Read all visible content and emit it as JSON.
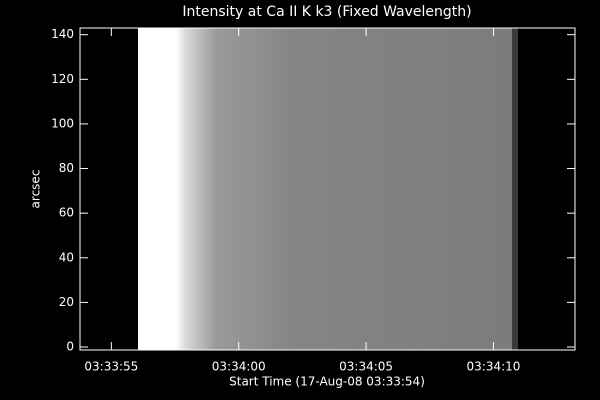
{
  "chart_data": {
    "type": "image",
    "title": "Intensity at Ca II K k3 (Fixed Wavelength)",
    "x_label": "Start Time (17-Aug-08 03:33:54)",
    "y_label": "arcsec",
    "xlim": [
      -0.23,
      19.2
    ],
    "xticks": [
      {
        "value": 1,
        "label": "03:33:55"
      },
      {
        "value": 6,
        "label": "03:34:00"
      },
      {
        "value": 11,
        "label": "03:34:05"
      },
      {
        "value": 16,
        "label": "03:34:10"
      }
    ],
    "ylim": [
      0,
      143
    ],
    "yticks": [
      0,
      20,
      40,
      60,
      80,
      100,
      120,
      140
    ]
  }
}
